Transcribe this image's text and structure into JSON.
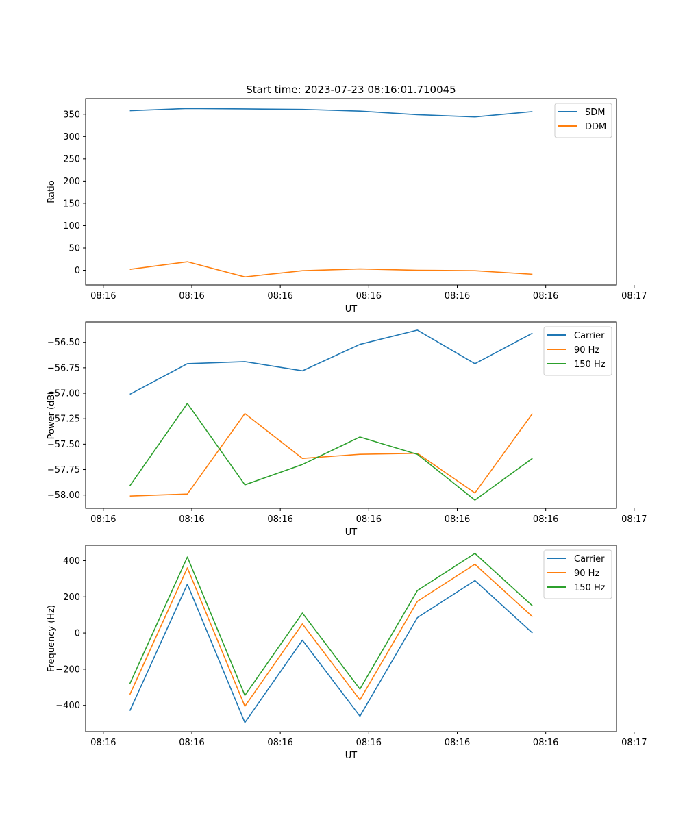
{
  "figure": {
    "title": "Start time: 2023-07-23 08:16:01.710045"
  },
  "colors": {
    "c0": "#1f77b4",
    "c1": "#ff7f0e",
    "c2": "#2ca02c"
  },
  "chart_data": [
    {
      "type": "line",
      "title": "Start time: 2023-07-23 08:16:01.710045",
      "xlabel": "UT",
      "ylabel": "Ratio",
      "x": [
        0.5,
        1.15,
        1.8,
        2.45,
        3.1,
        3.75,
        4.4,
        5.05
      ],
      "x_tick_labels": [
        "08:16",
        "08:16",
        "08:16",
        "08:16",
        "08:16",
        "08:16",
        "08:17"
      ],
      "xlim": [
        0,
        6
      ],
      "ylim": [
        -33,
        385
      ],
      "yticks": [
        0,
        50,
        100,
        150,
        200,
        250,
        300,
        350
      ],
      "legend_position": "top-right",
      "grid": false,
      "series": [
        {
          "name": "SDM",
          "color": "#1f77b4",
          "values": [
            358,
            363,
            362,
            361,
            357,
            349,
            344,
            356
          ]
        },
        {
          "name": "DDM",
          "color": "#ff7f0e",
          "values": [
            2,
            19,
            -15,
            -1,
            3,
            0,
            -1,
            -9
          ]
        }
      ]
    },
    {
      "type": "line",
      "title": "",
      "xlabel": "UT",
      "ylabel": "Power (dB)",
      "x": [
        0.5,
        1.15,
        1.8,
        2.45,
        3.1,
        3.75,
        4.4,
        5.05
      ],
      "x_tick_labels": [
        "08:16",
        "08:16",
        "08:16",
        "08:16",
        "08:16",
        "08:16",
        "08:17"
      ],
      "xlim": [
        0,
        6
      ],
      "ylim": [
        -58.13,
        -56.3
      ],
      "yticks": [
        -58.0,
        -57.75,
        -57.5,
        -57.25,
        -57.0,
        -56.75,
        -56.5
      ],
      "ytick_labels": [
        "−58.00",
        "−57.75",
        "−57.50",
        "−57.25",
        "−57.00",
        "−56.75",
        "−56.50"
      ],
      "legend_position": "top-right",
      "grid": false,
      "series": [
        {
          "name": "Carrier",
          "color": "#1f77b4",
          "values": [
            -57.01,
            -56.71,
            -56.69,
            -56.78,
            -56.52,
            -56.38,
            -56.71,
            -56.41
          ]
        },
        {
          "name": "90 Hz",
          "color": "#ff7f0e",
          "values": [
            -58.01,
            -57.99,
            -57.2,
            -57.64,
            -57.6,
            -57.59,
            -57.98,
            -57.2
          ]
        },
        {
          "name": "150 Hz",
          "color": "#2ca02c",
          "values": [
            -57.91,
            -57.1,
            -57.9,
            -57.7,
            -57.43,
            -57.6,
            -58.05,
            -57.64
          ]
        }
      ]
    },
    {
      "type": "line",
      "title": "",
      "xlabel": "UT",
      "ylabel": "Frequency (Hz)",
      "x": [
        0.5,
        1.15,
        1.8,
        2.45,
        3.1,
        3.75,
        4.4,
        5.05
      ],
      "x_tick_labels": [
        "08:16",
        "08:16",
        "08:16",
        "08:16",
        "08:16",
        "08:16",
        "08:17"
      ],
      "xlim": [
        0,
        6
      ],
      "ylim": [
        -545,
        485
      ],
      "yticks": [
        -400,
        -200,
        0,
        200,
        400
      ],
      "ytick_labels": [
        "−400",
        "−200",
        "0",
        "200",
        "400"
      ],
      "legend_position": "top-right",
      "grid": false,
      "series": [
        {
          "name": "Carrier",
          "color": "#1f77b4",
          "values": [
            -430,
            270,
            -495,
            -40,
            -460,
            85,
            290,
            0
          ]
        },
        {
          "name": "90 Hz",
          "color": "#ff7f0e",
          "values": [
            -340,
            360,
            -405,
            50,
            -370,
            175,
            380,
            90
          ]
        },
        {
          "name": "150 Hz",
          "color": "#2ca02c",
          "values": [
            -280,
            420,
            -345,
            110,
            -310,
            235,
            440,
            150
          ]
        }
      ]
    }
  ]
}
